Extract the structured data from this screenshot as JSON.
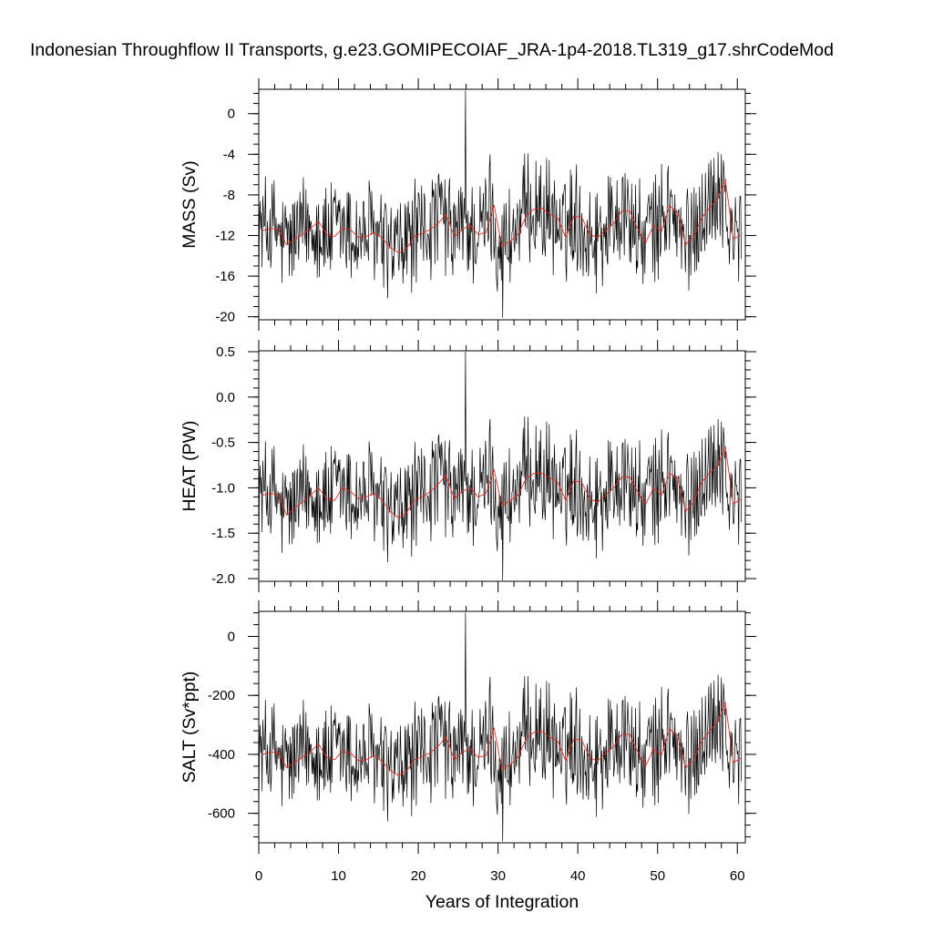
{
  "title": "Indonesian Throughflow II Transports, g.e23.GOMIPECOIAF_JRA-1p4-2018.TL319_g17.shrCodeMod",
  "chart_data": {
    "type": "line",
    "xlabel": "Years of Integration",
    "xlim": [
      0,
      61
    ],
    "x_ticks": [
      0,
      10,
      20,
      30,
      40,
      50,
      60
    ],
    "x_minor_step": 2,
    "grid": false,
    "legend": "none",
    "colors": {
      "monthly": "#000000",
      "annual": "#e8261b"
    },
    "monthly_points_per_year": 12,
    "panels": [
      {
        "ylabel": "MASS (Sv)",
        "ylim": [
          -20.3,
          2.4
        ],
        "y_ticks": [
          -20,
          -16,
          -12,
          -8,
          -4,
          0
        ],
        "y_tick_labels": [
          "-20",
          "-16",
          "-12",
          "-8",
          "-4",
          "0"
        ],
        "y_minor_step": 1,
        "monthly_range": [
          -20.1,
          2.3
        ],
        "annual_mean": [
          -11.5,
          -11.3,
          -11.4,
          -12.9,
          -12.4,
          -11.9,
          -11.3,
          -10.6,
          -11.9,
          -12.1,
          -11.3,
          -11.4,
          -12.2,
          -12.1,
          -11.7,
          -12.3,
          -13.2,
          -13.7,
          -13.3,
          -12.1,
          -11.8,
          -11.4,
          -10.8,
          -9.9,
          -12.1,
          -11.4,
          -11.0,
          -11.9,
          -11.7,
          -9.0,
          -13.1,
          -12.6,
          -11.9,
          -10.1,
          -9.4,
          -9.3,
          -9.9,
          -10.3,
          -12.2,
          -10.1,
          -10.2,
          -11.9,
          -12.2,
          -11.5,
          -10.8,
          -9.6,
          -9.6,
          -11.3,
          -12.7,
          -11.0,
          -11.6,
          -9.1,
          -9.7,
          -12.9,
          -12.2,
          -10.3,
          -9.3,
          -8.4,
          -6.5,
          -12.3,
          -12.0
        ]
      },
      {
        "ylabel": "HEAT (PW)",
        "ylim": [
          -2.03,
          0.51
        ],
        "y_ticks": [
          -2.0,
          -1.5,
          -1.0,
          -0.5,
          0.0,
          0.5
        ],
        "y_tick_labels": [
          "-2.0",
          "-1.5",
          "-1.0",
          "-0.5",
          "0.0",
          "0.5"
        ],
        "y_minor_step": 0.1,
        "monthly_range": [
          -2.02,
          0.5
        ],
        "annual_mean": [
          -1.08,
          -1.06,
          -1.08,
          -1.3,
          -1.22,
          -1.16,
          -1.08,
          -1.0,
          -1.12,
          -1.14,
          -1.0,
          -1.04,
          -1.12,
          -1.1,
          -1.06,
          -1.14,
          -1.26,
          -1.33,
          -1.28,
          -1.14,
          -1.1,
          -1.04,
          -0.96,
          -0.86,
          -1.12,
          -1.04,
          -1.0,
          -1.1,
          -1.06,
          -0.8,
          -1.2,
          -1.14,
          -1.08,
          -0.9,
          -0.84,
          -0.84,
          -0.89,
          -0.94,
          -1.14,
          -0.92,
          -0.94,
          -1.12,
          -1.16,
          -1.08,
          -1.0,
          -0.88,
          -0.88,
          -1.04,
          -1.18,
          -1.0,
          -1.08,
          -0.84,
          -0.89,
          -1.26,
          -1.16,
          -0.94,
          -0.84,
          -0.76,
          -0.55,
          -1.18,
          -1.12
        ]
      },
      {
        "ylabel": "SALT (Sv*ppt)",
        "ylim": [
          -700,
          85
        ],
        "y_ticks": [
          -600,
          -400,
          -200,
          0
        ],
        "y_tick_labels": [
          "-600",
          "-400",
          "-200",
          "0"
        ],
        "y_minor_step": 40,
        "monthly_range": [
          -695,
          80
        ],
        "annual_mean": [
          -400,
          -392,
          -395,
          -445,
          -428,
          -410,
          -390,
          -365,
          -410,
          -418,
          -390,
          -395,
          -422,
          -418,
          -404,
          -425,
          -455,
          -472,
          -458,
          -418,
          -408,
          -394,
          -372,
          -340,
          -418,
          -394,
          -380,
          -410,
          -404,
          -310,
          -452,
          -435,
          -410,
          -348,
          -325,
          -322,
          -342,
          -356,
          -422,
          -348,
          -352,
          -412,
          -422,
          -396,
          -374,
          -332,
          -332,
          -390,
          -440,
          -380,
          -402,
          -314,
          -336,
          -446,
          -422,
          -356,
          -322,
          -290,
          -225,
          -428,
          -412
        ]
      }
    ]
  }
}
